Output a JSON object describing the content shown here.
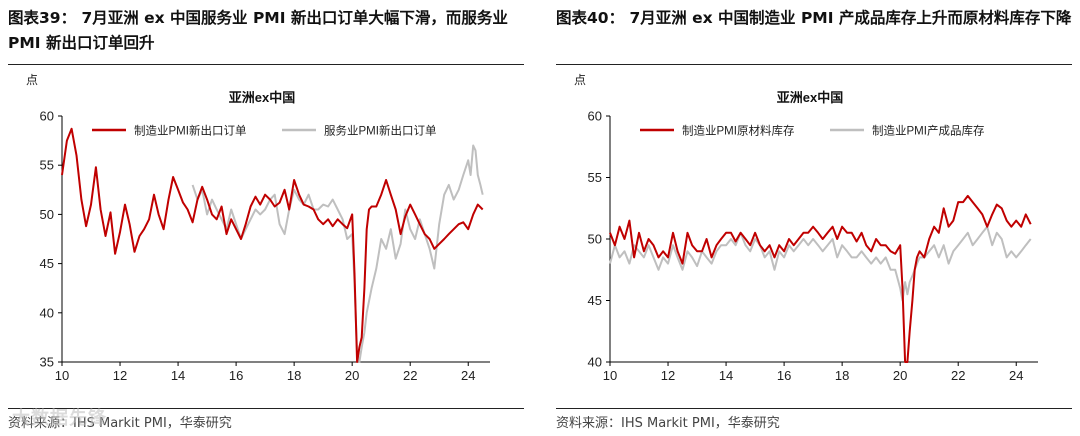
{
  "colors": {
    "red": "#c00000",
    "grey": "#bfbfbf",
    "axis": "#000000"
  },
  "watermark": "大数据先锋",
  "chart_data": [
    {
      "type": "line",
      "figure_title": "图表39： 7月亚洲 ex 中国服务业 PMI 新出口订单大幅下滑，而服务业 PMI 新出口订单回升",
      "title": "亚洲ex中国",
      "ylabel": "点",
      "ylim": [
        35,
        60
      ],
      "yticks": [
        35,
        40,
        45,
        50,
        55,
        60
      ],
      "xlim": [
        2010,
        2024.75
      ],
      "xticks": [
        10,
        12,
        14,
        16,
        18,
        20,
        22,
        24
      ],
      "source": "资料来源：IHS Markit PMI，华泰研究",
      "series": [
        {
          "name": "制造业PMI新出口订单",
          "color": "#c00000",
          "x": [
            2010.0,
            2010.17,
            2010.33,
            2010.5,
            2010.67,
            2010.83,
            2011.0,
            2011.17,
            2011.33,
            2011.5,
            2011.67,
            2011.83,
            2012.0,
            2012.17,
            2012.33,
            2012.5,
            2012.67,
            2012.83,
            2013.0,
            2013.17,
            2013.33,
            2013.5,
            2013.67,
            2013.83,
            2014.0,
            2014.17,
            2014.33,
            2014.5,
            2014.67,
            2014.83,
            2015.0,
            2015.17,
            2015.33,
            2015.5,
            2015.67,
            2015.83,
            2016.0,
            2016.17,
            2016.33,
            2016.5,
            2016.67,
            2016.83,
            2017.0,
            2017.17,
            2017.33,
            2017.5,
            2017.67,
            2017.83,
            2018.0,
            2018.17,
            2018.33,
            2018.5,
            2018.67,
            2018.83,
            2019.0,
            2019.17,
            2019.33,
            2019.5,
            2019.67,
            2019.83,
            2020.0,
            2020.08,
            2020.17,
            2020.25,
            2020.33,
            2020.42,
            2020.5,
            2020.58,
            2020.67,
            2020.83,
            2021.0,
            2021.17,
            2021.33,
            2021.5,
            2021.67,
            2021.83,
            2022.0,
            2022.17,
            2022.33,
            2022.5,
            2022.67,
            2022.83,
            2023.0,
            2023.17,
            2023.33,
            2023.5,
            2023.67,
            2023.83,
            2024.0,
            2024.17,
            2024.33,
            2024.5
          ],
          "y": [
            54.0,
            57.5,
            58.7,
            56.0,
            51.5,
            48.8,
            51.0,
            54.8,
            50.5,
            47.8,
            50.2,
            46.0,
            48.2,
            51.0,
            49.0,
            46.2,
            47.8,
            48.5,
            49.5,
            52.0,
            50.0,
            48.5,
            51.5,
            53.8,
            52.5,
            51.2,
            50.5,
            49.2,
            51.5,
            52.8,
            51.5,
            50.0,
            49.5,
            50.8,
            48.0,
            49.5,
            48.5,
            47.5,
            49.0,
            50.8,
            51.8,
            51.0,
            52.0,
            51.5,
            50.8,
            51.2,
            52.5,
            50.5,
            53.5,
            52.0,
            51.0,
            50.8,
            50.5,
            49.5,
            49.0,
            49.5,
            48.8,
            49.5,
            49.0,
            48.6,
            50.0,
            44.0,
            35.0,
            36.5,
            37.5,
            42.5,
            48.5,
            50.5,
            50.8,
            50.8,
            52.0,
            53.5,
            52.0,
            50.5,
            48.0,
            49.8,
            51.0,
            50.0,
            49.0,
            48.0,
            47.5,
            46.5,
            47.0,
            47.5,
            48.0,
            48.5,
            49.0,
            49.2,
            48.5,
            50.0,
            51.0,
            50.5
          ]
        },
        {
          "name": "服务业PMI新出口订单",
          "color": "#bfbfbf",
          "x": [
            2014.5,
            2014.67,
            2014.83,
            2015.0,
            2015.17,
            2015.33,
            2015.5,
            2015.67,
            2015.83,
            2016.0,
            2016.17,
            2016.33,
            2016.5,
            2016.67,
            2016.83,
            2017.0,
            2017.17,
            2017.33,
            2017.5,
            2017.67,
            2017.83,
            2018.0,
            2018.17,
            2018.33,
            2018.5,
            2018.67,
            2018.83,
            2019.0,
            2019.17,
            2019.33,
            2019.5,
            2019.67,
            2019.83,
            2020.0,
            2020.08,
            2020.17,
            2020.25,
            2020.33,
            2020.42,
            2020.5,
            2020.67,
            2020.83,
            2021.0,
            2021.17,
            2021.33,
            2021.5,
            2021.67,
            2021.83,
            2022.0,
            2022.17,
            2022.33,
            2022.5,
            2022.67,
            2022.83,
            2023.0,
            2023.17,
            2023.33,
            2023.5,
            2023.67,
            2023.83,
            2024.0,
            2024.08,
            2024.17,
            2024.25,
            2024.33,
            2024.42,
            2024.5
          ],
          "y": [
            53.0,
            51.5,
            52.5,
            50.0,
            51.5,
            50.5,
            49.5,
            48.5,
            50.5,
            49.0,
            47.5,
            48.5,
            49.5,
            50.5,
            50.0,
            50.5,
            51.5,
            52.0,
            49.0,
            48.0,
            50.5,
            52.5,
            51.5,
            51.0,
            52.0,
            50.5,
            50.5,
            51.0,
            50.8,
            51.5,
            50.5,
            49.5,
            47.5,
            48.0,
            43.0,
            36.0,
            35.0,
            36.5,
            38.0,
            40.0,
            42.5,
            44.5,
            47.5,
            46.5,
            48.5,
            45.5,
            47.0,
            50.5,
            48.5,
            47.5,
            49.5,
            48.0,
            46.5,
            44.5,
            49.0,
            52.0,
            53.0,
            51.5,
            52.5,
            54.0,
            55.5,
            54.0,
            57.0,
            56.5,
            54.0,
            53.0,
            52.0
          ]
        }
      ]
    },
    {
      "type": "line",
      "figure_title": "图表40： 7月亚洲 ex 中国制造业 PMI 产成品库存上升而原材料库存下降",
      "title": "亚洲ex中国",
      "ylabel": "点",
      "ylim": [
        40,
        60
      ],
      "yticks": [
        40,
        45,
        50,
        55,
        60
      ],
      "xlim": [
        2010,
        2024.75
      ],
      "xticks": [
        10,
        12,
        14,
        16,
        18,
        20,
        22,
        24
      ],
      "source": "资料来源：IHS Markit PMI，华泰研究",
      "series": [
        {
          "name": "制造业PMI原材料库存",
          "color": "#c00000",
          "x": [
            2010.0,
            2010.17,
            2010.33,
            2010.5,
            2010.67,
            2010.83,
            2011.0,
            2011.17,
            2011.33,
            2011.5,
            2011.67,
            2011.83,
            2012.0,
            2012.17,
            2012.33,
            2012.5,
            2012.67,
            2012.83,
            2013.0,
            2013.17,
            2013.33,
            2013.5,
            2013.67,
            2013.83,
            2014.0,
            2014.17,
            2014.33,
            2014.5,
            2014.67,
            2014.83,
            2015.0,
            2015.17,
            2015.33,
            2015.5,
            2015.67,
            2015.83,
            2016.0,
            2016.17,
            2016.33,
            2016.5,
            2016.67,
            2016.83,
            2017.0,
            2017.17,
            2017.33,
            2017.5,
            2017.67,
            2017.83,
            2018.0,
            2018.17,
            2018.33,
            2018.5,
            2018.67,
            2018.83,
            2019.0,
            2019.17,
            2019.33,
            2019.5,
            2019.67,
            2019.83,
            2020.0,
            2020.08,
            2020.17,
            2020.25,
            2020.33,
            2020.42,
            2020.5,
            2020.58,
            2020.67,
            2020.83,
            2021.0,
            2021.17,
            2021.33,
            2021.5,
            2021.67,
            2021.83,
            2022.0,
            2022.17,
            2022.33,
            2022.5,
            2022.67,
            2022.83,
            2023.0,
            2023.17,
            2023.33,
            2023.5,
            2023.67,
            2023.83,
            2024.0,
            2024.17,
            2024.33,
            2024.5
          ],
          "y": [
            50.5,
            49.5,
            51.0,
            50.0,
            51.5,
            48.5,
            50.5,
            49.0,
            50.0,
            49.5,
            48.5,
            49.0,
            48.5,
            50.5,
            49.0,
            48.0,
            50.5,
            49.5,
            49.0,
            49.0,
            50.0,
            48.5,
            49.5,
            50.0,
            50.5,
            50.5,
            49.8,
            50.5,
            50.0,
            49.5,
            50.5,
            49.5,
            49.0,
            49.5,
            48.5,
            49.5,
            49.0,
            50.0,
            49.5,
            50.0,
            50.5,
            50.5,
            51.0,
            50.5,
            50.0,
            50.5,
            51.0,
            50.0,
            51.0,
            50.5,
            50.5,
            49.8,
            50.5,
            49.5,
            49.0,
            50.0,
            49.5,
            49.5,
            49.0,
            48.8,
            49.5,
            46.0,
            40.0,
            40.0,
            42.5,
            45.0,
            47.5,
            48.5,
            49.0,
            48.5,
            50.0,
            51.0,
            50.5,
            52.5,
            51.0,
            51.5,
            53.0,
            53.0,
            53.5,
            53.0,
            52.5,
            52.0,
            51.0,
            52.0,
            52.8,
            52.5,
            51.5,
            51.0,
            51.5,
            51.0,
            52.0,
            51.2
          ]
        },
        {
          "name": "制造业PMI产成品库存",
          "color": "#bfbfbf",
          "x": [
            2010.0,
            2010.17,
            2010.33,
            2010.5,
            2010.67,
            2010.83,
            2011.0,
            2011.17,
            2011.33,
            2011.5,
            2011.67,
            2011.83,
            2012.0,
            2012.17,
            2012.33,
            2012.5,
            2012.67,
            2012.83,
            2013.0,
            2013.17,
            2013.33,
            2013.5,
            2013.67,
            2013.83,
            2014.0,
            2014.17,
            2014.33,
            2014.5,
            2014.67,
            2014.83,
            2015.0,
            2015.17,
            2015.33,
            2015.5,
            2015.67,
            2015.83,
            2016.0,
            2016.17,
            2016.33,
            2016.5,
            2016.67,
            2016.83,
            2017.0,
            2017.17,
            2017.33,
            2017.5,
            2017.67,
            2017.83,
            2018.0,
            2018.17,
            2018.33,
            2018.5,
            2018.67,
            2018.83,
            2019.0,
            2019.17,
            2019.33,
            2019.5,
            2019.67,
            2019.83,
            2020.0,
            2020.08,
            2020.17,
            2020.25,
            2020.33,
            2020.42,
            2020.5,
            2020.58,
            2020.67,
            2020.83,
            2021.0,
            2021.17,
            2021.33,
            2021.5,
            2021.67,
            2021.83,
            2022.0,
            2022.17,
            2022.33,
            2022.5,
            2022.67,
            2022.83,
            2023.0,
            2023.17,
            2023.33,
            2023.5,
            2023.67,
            2023.83,
            2024.0,
            2024.17,
            2024.33,
            2024.5
          ],
          "y": [
            48.0,
            49.5,
            48.5,
            49.0,
            48.0,
            49.5,
            49.0,
            48.5,
            49.5,
            48.5,
            47.5,
            48.5,
            48.0,
            49.5,
            48.5,
            47.5,
            49.0,
            48.5,
            47.8,
            49.0,
            48.5,
            48.0,
            49.0,
            49.5,
            49.5,
            50.0,
            49.5,
            50.5,
            49.5,
            49.0,
            50.0,
            49.5,
            48.5,
            49.0,
            47.5,
            49.0,
            48.5,
            49.5,
            49.0,
            49.5,
            50.0,
            49.5,
            50.0,
            49.5,
            49.0,
            49.5,
            50.0,
            48.5,
            49.5,
            49.0,
            48.5,
            48.5,
            49.0,
            48.5,
            48.0,
            48.5,
            48.0,
            48.5,
            47.5,
            47.5,
            46.0,
            45.0,
            46.5,
            45.5,
            46.5,
            47.0,
            47.5,
            48.0,
            48.5,
            48.5,
            49.0,
            49.5,
            48.5,
            49.5,
            48.0,
            49.0,
            49.5,
            50.0,
            50.5,
            49.5,
            50.0,
            50.5,
            51.0,
            49.5,
            50.5,
            50.0,
            48.5,
            49.0,
            48.5,
            49.0,
            49.5,
            50.0
          ]
        }
      ]
    }
  ]
}
